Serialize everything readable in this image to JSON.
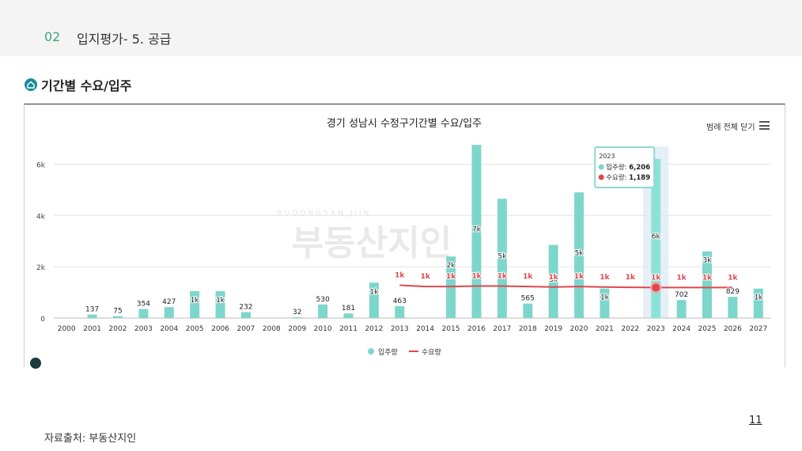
{
  "header": {
    "slide_number": "02",
    "title": "입지평가- 5. 공급"
  },
  "section": {
    "title": "기간별 수요/입주",
    "icon": "home-icon"
  },
  "toolbar": {
    "legend_toggle_label": "범례 전체 닫기",
    "menu_icon": "hamburger-menu-icon"
  },
  "watermark": {
    "small": "BUDONGSAN JIIN",
    "main": "부동산지인"
  },
  "footer": {
    "source": "자료출처: 부동산지인",
    "page": "11"
  },
  "chart_data": {
    "type": "bar",
    "title": "경기 성남시 수정구기간별 수요/입주",
    "categories": [
      "2000",
      "2001",
      "2002",
      "2003",
      "2004",
      "2005",
      "2006",
      "2007",
      "2008",
      "2009",
      "2010",
      "2011",
      "2012",
      "2013",
      "2014",
      "2015",
      "2016",
      "2017",
      "2018",
      "2019",
      "2020",
      "2021",
      "2022",
      "2023",
      "2024",
      "2025",
      "2026",
      "2027"
    ],
    "ylim": [
      0,
      6600
    ],
    "yticks": [
      0,
      2000,
      4000,
      6000
    ],
    "ytick_labels": [
      "0",
      "2k",
      "4k",
      "6k"
    ],
    "grid": true,
    "series": [
      {
        "name": "입주량",
        "kind": "bar",
        "color": "#7dd6cc",
        "values": [
          0,
          137,
          75,
          354,
          427,
          1050,
          1050,
          232,
          0,
          32,
          530,
          181,
          1380,
          463,
          0,
          2400,
          6750,
          4650,
          565,
          2850,
          4900,
          1150,
          0,
          6206,
          702,
          2600,
          829,
          1150
        ],
        "labels": [
          "",
          "137",
          "75",
          "354",
          "427",
          "1k",
          "1k",
          "232",
          "",
          "32",
          "530",
          "181",
          "1k",
          "463",
          "",
          "2k",
          "7k",
          "5k",
          "565",
          "3k",
          "5k",
          "1k",
          "",
          "6k",
          "702",
          "3k",
          "829",
          "1k"
        ]
      },
      {
        "name": "수요량",
        "kind": "line",
        "color": "#e0474c",
        "values": [
          null,
          null,
          null,
          null,
          null,
          null,
          null,
          null,
          null,
          null,
          null,
          null,
          null,
          1280,
          1230,
          1230,
          1250,
          1250,
          1230,
          1210,
          1230,
          1210,
          1200,
          1189,
          1190,
          1190,
          1190,
          null
        ],
        "labels": [
          "",
          "",
          "",
          "",
          "",
          "",
          "",
          "",
          "",
          "",
          "",
          "",
          "",
          "1k",
          "1k",
          "1k",
          "1k",
          "1k",
          "1k",
          "1k",
          "1k",
          "1k",
          "1k",
          "1k",
          "1k",
          "1k",
          "1k",
          ""
        ]
      }
    ],
    "tooltip": {
      "category": "2023",
      "rows": [
        {
          "label": "입주량:",
          "value": "6,206",
          "color": "#7dd6cc"
        },
        {
          "label": "수요량:",
          "value": "1,189",
          "color": "#e0474c"
        }
      ]
    },
    "highlight_category": "2023",
    "legend_position": "bottom"
  }
}
